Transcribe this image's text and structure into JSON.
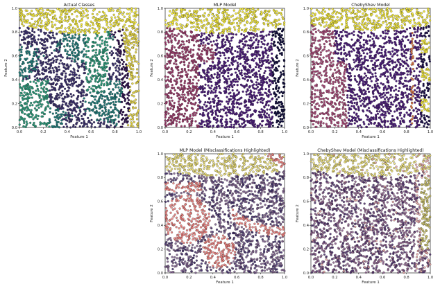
{
  "chart_data": [
    {
      "type": "scatter",
      "title": "Actual Classes",
      "xlabel": "Feature 1",
      "ylabel": "Feature 2",
      "xlim": [
        0.0,
        1.0
      ],
      "ylim": [
        0.0,
        1.0
      ],
      "xticks": [
        "0.0",
        "0.2",
        "0.4",
        "0.6",
        "0.8",
        "1.0"
      ],
      "yticks": [
        "0.0",
        "0.2",
        "0.4",
        "0.6",
        "0.8",
        "1.0"
      ],
      "n_points_approx": 2500,
      "class_colors": [
        "#f3e83b",
        "#1f7a78",
        "#3a2f6d",
        "#2a9a7a",
        "#2d0f4d",
        "#e8d846"
      ],
      "regions": [
        "yellow band along top (y > ~0.85)",
        "teal and dark-indigo interleaved regions in the body",
        "dark purple crescent near x ~ 0.85-0.9",
        "yellow crescent at far right x > 0.9"
      ],
      "misclassifications_highlighted": false
    },
    {
      "type": "scatter",
      "title": "MLP Model",
      "xlabel": "Feature 1",
      "ylabel": "Feature 2",
      "xlim": [
        0.0,
        1.0
      ],
      "ylim": [
        0.0,
        1.0
      ],
      "xticks": [
        "0.0",
        "0.2",
        "0.4",
        "0.6",
        "0.8",
        "1.0"
      ],
      "yticks": [
        "0.0",
        "0.2",
        "0.4",
        "0.6",
        "0.8",
        "1.0"
      ],
      "n_points_approx": 2500,
      "class_colors": [
        "#f3e83b",
        "#9a3a6a",
        "#4a1a7a",
        "#0d0a3a"
      ],
      "regions": [
        "yellow band along top",
        "magenta region on left",
        "purple region in middle",
        "navy region on right"
      ],
      "misclassifications_highlighted": false
    },
    {
      "type": "scatter",
      "title": "ChebyShev Model",
      "xlabel": "Feature 1",
      "ylabel": "Feature 2",
      "xlim": [
        0.0,
        1.0
      ],
      "ylim": [
        0.0,
        1.0
      ],
      "xticks": [
        "0.0",
        "0.2",
        "0.4",
        "0.6",
        "0.8",
        "1.0"
      ],
      "yticks": [
        "0.0",
        "0.2",
        "0.4",
        "0.6",
        "0.8",
        "1.0"
      ],
      "n_points_approx": 2500,
      "class_colors": [
        "#f3e83b",
        "#a84a78",
        "#4a1a7a",
        "#e07a4a",
        "#1a0d4a"
      ],
      "regions": [
        "yellow band along top",
        "pink/magenta region left and bottom",
        "purple middle region",
        "orange thin crescent near x ~ 0.85",
        "navy/yellow crescent at far right"
      ],
      "misclassifications_highlighted": false
    },
    {
      "type": "scatter",
      "title": "MLP Model (Misclassifications Highlighted)",
      "xlabel": "Feature 1",
      "ylabel": "Feature 2",
      "xlim": [
        0.0,
        1.0
      ],
      "ylim": [
        0.0,
        1.0
      ],
      "xticks": [
        "0.0",
        "0.2",
        "0.4",
        "0.6",
        "0.8",
        "1.0"
      ],
      "yticks": [
        "0.0",
        "0.2",
        "0.4",
        "0.6",
        "0.8",
        "1.0"
      ],
      "n_points_approx": 2500,
      "highlight_color": "#f07a78",
      "class_colors": [
        "#eee070",
        "#7a5a8a",
        "#3e2a6a"
      ],
      "misclassifications_highlighted": true
    },
    {
      "type": "scatter",
      "title": "ChebyShev Model (Misclassifications Highlighted)",
      "xlabel": "Feature 1",
      "ylabel": "Feature 2",
      "xlim": [
        0.0,
        1.0
      ],
      "ylim": [
        0.0,
        1.0
      ],
      "xticks": [
        "0.0",
        "0.2",
        "0.4",
        "0.6",
        "0.8",
        "1.0"
      ],
      "yticks": [
        "0.0",
        "0.2",
        "0.4",
        "0.6",
        "0.8",
        "1.0"
      ],
      "n_points_approx": 2500,
      "highlight_color": "#e6a0a0",
      "class_colors": [
        "#eee070",
        "#8a5a8a",
        "#4a2a6a",
        "#c9c060"
      ],
      "misclassifications_highlighted": true
    }
  ]
}
